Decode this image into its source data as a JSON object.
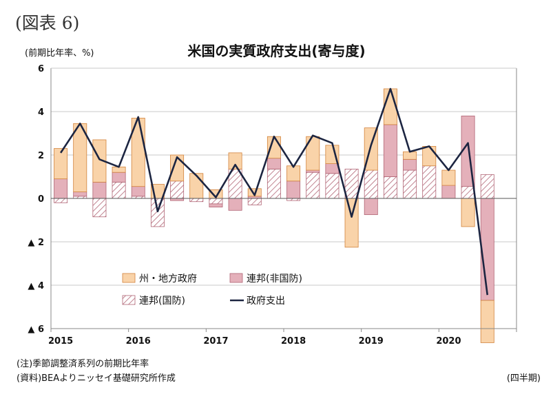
{
  "figure_label": "(図表 6)",
  "unit_label": "(前期比年率、%)",
  "notes": [
    "(注)季節調整済系列の前期比年率",
    "(資料)BEAよりニッセイ基礎研究所作成"
  ],
  "frequency_label": "(四半期)",
  "colors": {
    "state_local": "#f9d3a9",
    "state_local_edge": "#d2833c",
    "federal_nondefense": "#e4b0ba",
    "federal_nondefense_edge": "#b06474",
    "federal_defense_hatch": "#b06474",
    "total_line": "#1c2541",
    "grid": "#c8c8c8",
    "axis": "#888888"
  },
  "chart_data": {
    "type": "bar",
    "title": "米国の実質政府支出(寄与度)",
    "subtype": "stacked bar with line",
    "ylim": [
      -6,
      6
    ],
    "yticks": [
      {
        "value": 6,
        "label": "6"
      },
      {
        "value": 4,
        "label": "4"
      },
      {
        "value": 2,
        "label": "2"
      },
      {
        "value": 0,
        "label": "0"
      },
      {
        "value": -2,
        "label": "▲ 2"
      },
      {
        "value": -4,
        "label": "▲ 4"
      },
      {
        "value": -6,
        "label": "▲ 6"
      }
    ],
    "year_labels": [
      {
        "label": "2015",
        "quarter_index": 0
      },
      {
        "label": "2016",
        "quarter_index": 4
      },
      {
        "label": "2017",
        "quarter_index": 8
      },
      {
        "label": "2018",
        "quarter_index": 12
      },
      {
        "label": "2019",
        "quarter_index": 16
      },
      {
        "label": "2020",
        "quarter_index": 20
      }
    ],
    "categories": [
      "2015Q1",
      "2015Q2",
      "2015Q3",
      "2015Q4",
      "2016Q1",
      "2016Q2",
      "2016Q3",
      "2016Q4",
      "2017Q1",
      "2017Q2",
      "2017Q3",
      "2017Q4",
      "2018Q1",
      "2018Q2",
      "2018Q3",
      "2018Q4",
      "2019Q1",
      "2019Q2",
      "2019Q3",
      "2019Q4",
      "2020Q1",
      "2020Q2",
      "2020Q3"
    ],
    "grid": true,
    "legend_position": "bottom-left inside",
    "series": [
      {
        "name": "連邦(国防)",
        "key": "defense",
        "values": [
          -0.2,
          0.1,
          -0.85,
          0.75,
          0.1,
          -1.3,
          0.8,
          -0.15,
          -0.25,
          1.35,
          -0.3,
          1.35,
          -0.1,
          1.2,
          1.15,
          1.35,
          1.3,
          1.0,
          1.3,
          1.5,
          0.0,
          0.55,
          1.1
        ]
      },
      {
        "name": "連邦(非国防)",
        "key": "nondefense",
        "values": [
          0.9,
          0.2,
          0.75,
          0.45,
          0.45,
          0.0,
          -0.1,
          0.0,
          -0.15,
          -0.55,
          0.1,
          0.5,
          0.8,
          0.1,
          0.45,
          0.0,
          -0.75,
          2.4,
          0.5,
          0.0,
          0.6,
          3.25,
          -4.7
        ]
      },
      {
        "name": "州・地方政府",
        "key": "state",
        "values": [
          1.4,
          3.15,
          1.95,
          0.25,
          3.15,
          0.65,
          1.2,
          1.15,
          0.4,
          0.75,
          0.35,
          1.0,
          0.7,
          1.55,
          0.85,
          -2.25,
          1.95,
          1.65,
          0.35,
          0.9,
          0.7,
          -1.3,
          -1.95
        ]
      },
      {
        "name": "政府支出",
        "key": "total",
        "type": "line",
        "values": [
          2.1,
          3.45,
          1.8,
          1.45,
          3.75,
          -0.6,
          1.9,
          1.05,
          0.05,
          1.55,
          0.15,
          2.85,
          1.45,
          2.9,
          2.55,
          -0.85,
          2.45,
          5.05,
          2.15,
          2.4,
          1.3,
          2.55,
          -4.45
        ]
      }
    ],
    "legend_order": [
      "state",
      "nondefense",
      "defense",
      "total"
    ]
  }
}
